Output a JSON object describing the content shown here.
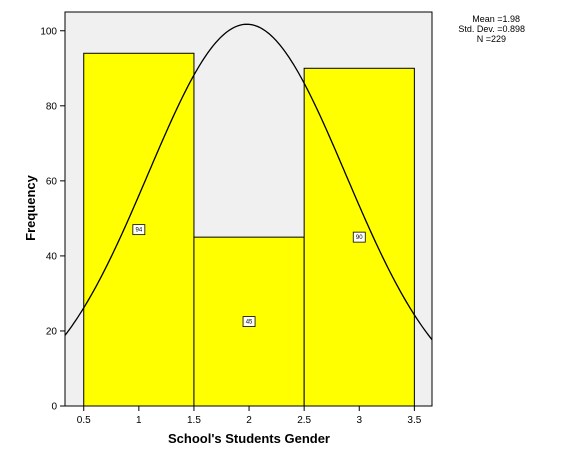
{
  "chart_data": {
    "type": "bar",
    "title": "",
    "xlabel": "School's Students Gender",
    "ylabel": "Frequency",
    "bins": [
      {
        "from": 0.5,
        "to": 1.5,
        "value": 94,
        "label": "94"
      },
      {
        "from": 1.5,
        "to": 2.5,
        "value": 45,
        "label": "45"
      },
      {
        "from": 2.5,
        "to": 3.5,
        "value": 90,
        "label": "90"
      }
    ],
    "xlim": [
      0.33,
      3.66
    ],
    "ylim": [
      0,
      105
    ],
    "x_ticks": [
      0.5,
      1,
      1.5,
      2,
      2.5,
      3,
      3.5
    ],
    "x_tick_labels": [
      "0.5",
      "1",
      "1.5",
      "2",
      "2.5",
      "3",
      "3.5"
    ],
    "y_ticks": [
      0,
      20,
      40,
      60,
      80,
      100
    ],
    "y_tick_labels": [
      "0",
      "20",
      "40",
      "60",
      "80",
      "100"
    ],
    "normal_curve": {
      "mean": 1.98,
      "std_dev": 0.898,
      "n": 229,
      "bin_width": 1
    },
    "stats": {
      "mean": "Mean =1.98",
      "std_dev": "Std. Dev. =0.898",
      "n": "N =229"
    },
    "colors": {
      "bar_fill": "#ffff00",
      "plot_background": "#f0f0f0",
      "curve": "#000000"
    },
    "grid": false,
    "legend": "none"
  }
}
